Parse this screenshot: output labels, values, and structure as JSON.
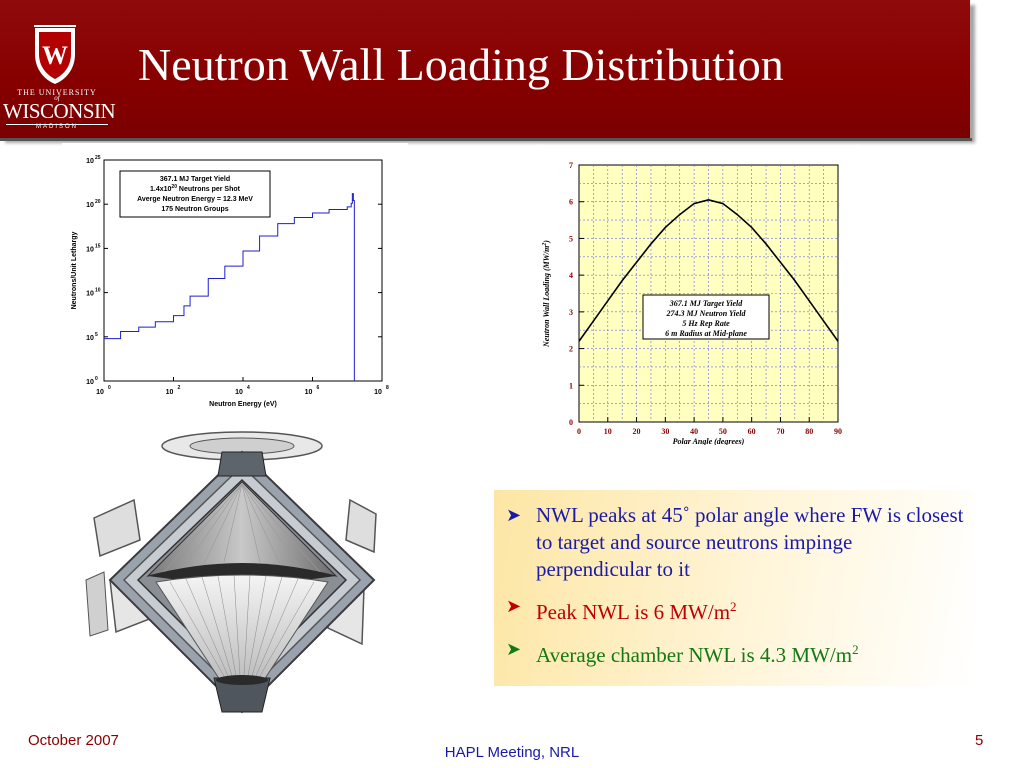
{
  "header": {
    "title": "Neutron Wall Loading Distribution",
    "logo": {
      "line1": "THE UNIVERSITY",
      "line_of": "of",
      "line2": "WISCONSIN",
      "line3": "MADISON",
      "crest_letter": "W"
    }
  },
  "chart_data": [
    {
      "type": "line",
      "title": "",
      "xlabel": "Neutron Energy (eV)",
      "ylabel": "Neutrons/Unit Lethargy",
      "xscale": "log",
      "yscale": "log",
      "xlim": [
        1,
        100000000
      ],
      "ylim": [
        1,
        1e+25
      ],
      "x_ticks": [
        "10",
        "10",
        "10",
        "10",
        "10"
      ],
      "x_tick_exps": [
        "0",
        "2",
        "4",
        "6",
        "8"
      ],
      "y_ticks": [
        "10",
        "10",
        "10",
        "10",
        "10",
        "10"
      ],
      "y_tick_exps": [
        "0",
        "5",
        "10",
        "15",
        "20",
        "25"
      ],
      "grid": false,
      "annotation": {
        "lines": [
          "367.1 MJ Target Yield",
          "1.4x10",
          "Neutrons per Shot",
          "Averge Neutron Energy = 12.3 MeV",
          "175 Neutron Groups"
        ],
        "exp": "20"
      },
      "series": [
        {
          "color": "#1f1fd0",
          "x": [
            1,
            3,
            10,
            30,
            100,
            200,
            300,
            1000,
            3000,
            10000,
            30000,
            100000,
            300000,
            1000000,
            3000000,
            10000000,
            13000000,
            14000000,
            15000000,
            16000000
          ],
          "y_exp": [
            4.8,
            5.6,
            6.1,
            6.7,
            7.4,
            8.5,
            9.6,
            11.6,
            13.0,
            14.7,
            16.4,
            17.8,
            18.5,
            19.0,
            19.4,
            19.7,
            20.1,
            21.2,
            20.4,
            0
          ]
        }
      ]
    },
    {
      "type": "line",
      "title": "",
      "xlabel": "Polar Angle (degrees)",
      "ylabel": "Neutron Wall Loading (MW/m",
      "ylabel_sup": "2",
      "ylabel_end": ")",
      "xlim": [
        0,
        90
      ],
      "ylim": [
        0,
        7
      ],
      "x_ticks": [
        "0",
        "10",
        "20",
        "30",
        "40",
        "50",
        "60",
        "70",
        "80",
        "90"
      ],
      "y_ticks": [
        "0",
        "1",
        "2",
        "3",
        "4",
        "5",
        "6",
        "7"
      ],
      "grid": true,
      "background": "#ffffc0",
      "annotation": {
        "lines": [
          "367.1 MJ Target Yield",
          "274.3 MJ Neutron Yield",
          "5 Hz Rep Rate",
          "6 m Radius at Mid-plane"
        ]
      },
      "series": [
        {
          "color": "#000000",
          "x": [
            0,
            5,
            10,
            15,
            20,
            25,
            30,
            35,
            40,
            45,
            50,
            55,
            60,
            65,
            70,
            75,
            80,
            85,
            90
          ],
          "y": [
            2.2,
            2.75,
            3.3,
            3.85,
            4.35,
            4.85,
            5.3,
            5.65,
            5.95,
            6.05,
            5.95,
            5.65,
            5.3,
            4.85,
            4.35,
            3.85,
            3.3,
            2.75,
            2.2
          ]
        }
      ]
    }
  ],
  "bullets": [
    {
      "text": "NWL peaks at 45˚   polar angle where FW is closest to target and source neutrons impinge perpendicular to it",
      "color": "#1a1aa8"
    },
    {
      "text": "Peak NWL is 6 MW/m",
      "sup": "2",
      "color": "#c00000"
    },
    {
      "text": "Average chamber NWL is 4.3 MW/m",
      "sup": "2",
      "color": "#127a12"
    }
  ],
  "footer": {
    "date": "October 2007",
    "meeting": "HAPL Meeting, NRL",
    "page": "5"
  }
}
